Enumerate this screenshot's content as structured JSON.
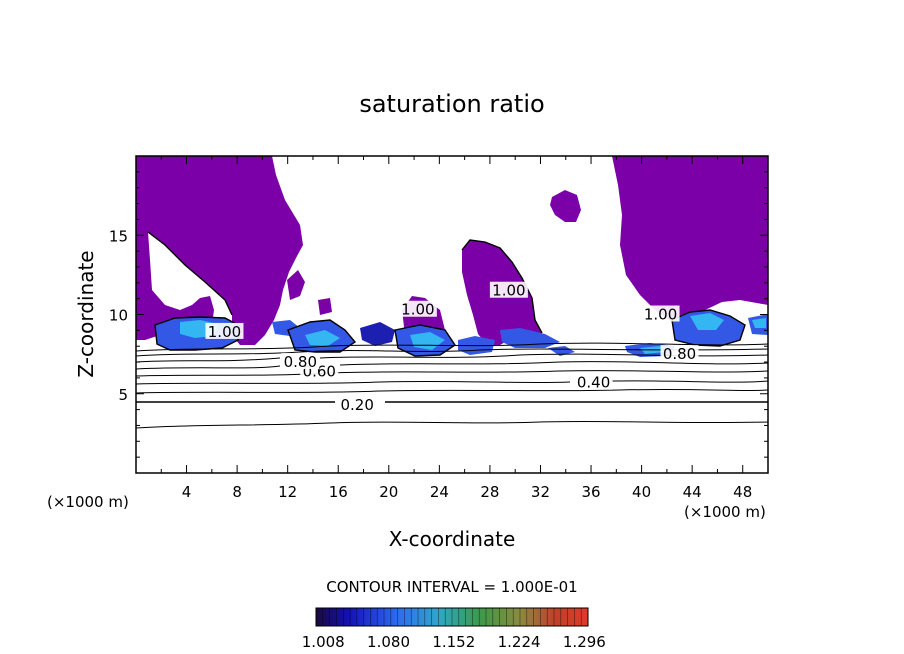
{
  "chart_data": {
    "type": "heatmap",
    "title": "saturation ratio",
    "xlabel": "X-coordinate",
    "ylabel": "Z-coordinate",
    "x_units_left": "(×1000 m)",
    "x_units_right": "(×1000 m)",
    "xlim": [
      0,
      50
    ],
    "ylim": [
      0,
      20
    ],
    "x_ticks": [
      4,
      8,
      12,
      16,
      20,
      24,
      28,
      32,
      36,
      40,
      44,
      48
    ],
    "y_ticks": [
      5,
      10,
      15
    ],
    "contour_interval_text": "CONTOUR INTERVAL = 1.000E-01",
    "contour_labels": [
      {
        "text": "0.20",
        "x": 17.5,
        "y": 4.3
      },
      {
        "text": "0.40",
        "x": 36.2,
        "y": 5.7
      },
      {
        "text": "0.60",
        "x": 14.5,
        "y": 6.4
      },
      {
        "text": "0.80",
        "x": 13.0,
        "y": 7.0
      },
      {
        "text": "1.00",
        "x": 7.0,
        "y": 8.9
      },
      {
        "text": "1.00",
        "x": 29.5,
        "y": 11.5
      },
      {
        "text": "1.00",
        "x": 22.3,
        "y": 10.3
      },
      {
        "text": "1.00",
        "x": 41.5,
        "y": 10.0
      },
      {
        "text": "0.80",
        "x": 43.0,
        "y": 7.5
      }
    ],
    "colorbar": {
      "ticks": [
        "1.008",
        "1.080",
        "1.152",
        "1.224",
        "1.296"
      ],
      "range": [
        1.0,
        1.3
      ]
    },
    "colors": {
      "supersat_fill": "#7b00a8",
      "cloud_blue": "#3358e6",
      "cloud_cyan": "#33b6f2",
      "cloud_dark": "#1d1fb0"
    }
  }
}
